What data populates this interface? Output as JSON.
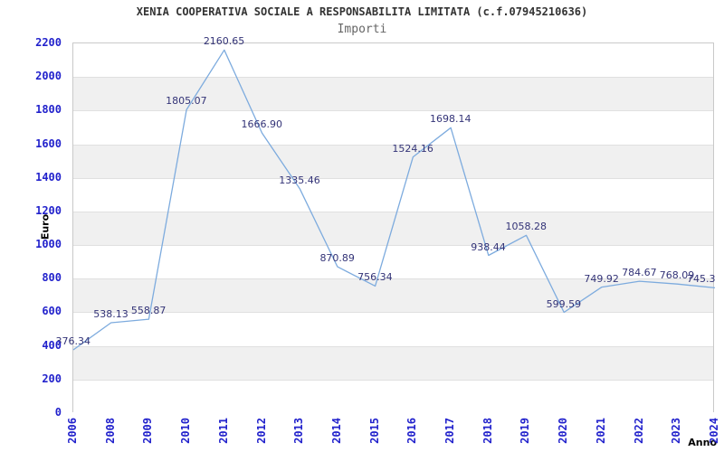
{
  "chart_data": {
    "type": "line",
    "title": "XENIA COOPERATIVA SOCIALE A RESPONSABILITA LIMITATA (c.f.07945210636)",
    "subtitle": "Importi",
    "xlabel": "Anno",
    "ylabel": "Euro",
    "categories": [
      "2006",
      "2008",
      "2009",
      "2010",
      "2011",
      "2012",
      "2013",
      "2014",
      "2015",
      "2016",
      "2017",
      "2018",
      "2019",
      "2020",
      "2021",
      "2022",
      "2023",
      "2024"
    ],
    "values": [
      376.34,
      538.13,
      558.87,
      1805.07,
      2160.65,
      1666.9,
      1335.46,
      870.89,
      756.34,
      1524.16,
      1698.14,
      938.44,
      1058.28,
      599.59,
      749.92,
      784.67,
      768.09,
      745.3
    ],
    "point_labels": [
      "376.34",
      "538.13",
      "558.87",
      "1805.07",
      "2160.65",
      "1666.90",
      "1335.46",
      "870.89",
      "756.34",
      "1524.16",
      "1698.14",
      "938.44",
      "1058.28",
      "599.59",
      "749.92",
      "784.67",
      "768.09",
      "745.3"
    ],
    "ylim": [
      0,
      2200
    ],
    "ytick_step": 200,
    "grid": "horizontal-bands",
    "legend": "none",
    "colors": {
      "line": "#7dabde",
      "tick_label": "#2222cc",
      "point_label": "#333377",
      "band": "#f0f0f0",
      "gridline": "#e0e0e0",
      "border": "#c9c9c9",
      "title": "#333333",
      "subtitle": "#666666",
      "axis_title": "#000000"
    }
  }
}
